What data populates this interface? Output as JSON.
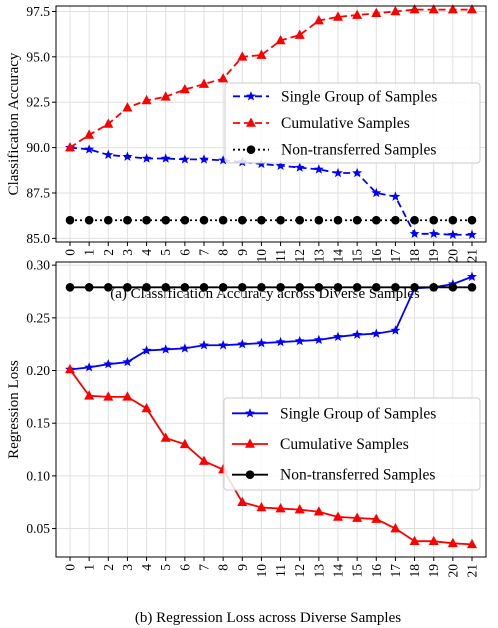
{
  "chart_data": [
    {
      "type": "line",
      "title": "",
      "caption": "(a) Classification Accuracy across Diverse Samples",
      "xlabel": "",
      "ylabel": "Classification Accuracy",
      "x": [
        0,
        1,
        2,
        3,
        4,
        5,
        6,
        7,
        8,
        9,
        10,
        11,
        12,
        13,
        14,
        15,
        16,
        17,
        18,
        19,
        20,
        21
      ],
      "xticks": [
        "0",
        "1",
        "2",
        "3",
        "4",
        "5",
        "6",
        "7",
        "8",
        "9",
        "10",
        "11",
        "12",
        "13",
        "14",
        "15",
        "16",
        "17",
        "18",
        "19",
        "20",
        "21"
      ],
      "ylim": [
        84.8,
        97.8
      ],
      "yticks": [
        "85.0",
        "87.5",
        "90.0",
        "92.5",
        "95.0",
        "97.5"
      ],
      "ytick_values": [
        85.0,
        87.5,
        90.0,
        92.5,
        95.0,
        97.5
      ],
      "grid": true,
      "legend_position": "center-right",
      "series": [
        {
          "name": "Single Group of Samples",
          "color": "#0000ff",
          "linestyle": "dashed",
          "marker": "star",
          "values": [
            90.0,
            89.9,
            89.6,
            89.5,
            89.4,
            89.4,
            89.35,
            89.35,
            89.3,
            89.2,
            89.1,
            89.0,
            88.9,
            88.8,
            88.6,
            88.6,
            87.5,
            87.3,
            85.25,
            85.25,
            85.2,
            85.2
          ]
        },
        {
          "name": "Cumulative Samples",
          "color": "#ff0000",
          "linestyle": "dashed",
          "marker": "triangle",
          "values": [
            90.0,
            90.7,
            91.3,
            92.2,
            92.6,
            92.8,
            93.2,
            93.5,
            93.8,
            95.0,
            95.1,
            95.9,
            96.2,
            97.0,
            97.2,
            97.3,
            97.4,
            97.5,
            97.6,
            97.6,
            97.6,
            97.6
          ]
        },
        {
          "name": "Non-transferred Samples",
          "color": "#000000",
          "linestyle": "dotted",
          "marker": "circle",
          "values": [
            86.0,
            86.0,
            86.0,
            86.0,
            86.0,
            86.0,
            86.0,
            86.0,
            86.0,
            86.0,
            86.0,
            86.0,
            86.0,
            86.0,
            86.0,
            86.0,
            86.0,
            86.0,
            86.0,
            86.0,
            86.0,
            86.0
          ]
        }
      ]
    },
    {
      "type": "line",
      "title": "",
      "caption": "(b) Regression Loss across Diverse Samples",
      "xlabel": "",
      "ylabel": "Regression Loss",
      "x": [
        0,
        1,
        2,
        3,
        4,
        5,
        6,
        7,
        8,
        9,
        10,
        11,
        12,
        13,
        14,
        15,
        16,
        17,
        18,
        19,
        20,
        21
      ],
      "xticks": [
        "0",
        "1",
        "2",
        "3",
        "4",
        "5",
        "6",
        "7",
        "8",
        "9",
        "10",
        "11",
        "12",
        "13",
        "14",
        "15",
        "16",
        "17",
        "18",
        "19",
        "20",
        "21"
      ],
      "ylim": [
        0.023,
        0.303
      ],
      "yticks": [
        "0.05",
        "0.10",
        "0.15",
        "0.20",
        "0.25",
        "0.30"
      ],
      "ytick_values": [
        0.05,
        0.1,
        0.15,
        0.2,
        0.25,
        0.3
      ],
      "grid": true,
      "legend_position": "center-right",
      "series": [
        {
          "name": "Single Group of Samples",
          "color": "#0000ff",
          "linestyle": "solid",
          "marker": "star",
          "values": [
            0.201,
            0.203,
            0.206,
            0.208,
            0.219,
            0.22,
            0.221,
            0.224,
            0.224,
            0.225,
            0.226,
            0.227,
            0.228,
            0.229,
            0.232,
            0.234,
            0.235,
            0.238,
            0.278,
            0.279,
            0.282,
            0.289
          ]
        },
        {
          "name": "Cumulative Samples",
          "color": "#ff0000",
          "linestyle": "solid",
          "marker": "triangle",
          "values": [
            0.201,
            0.176,
            0.175,
            0.175,
            0.164,
            0.136,
            0.13,
            0.114,
            0.106,
            0.075,
            0.07,
            0.069,
            0.068,
            0.066,
            0.061,
            0.06,
            0.059,
            0.05,
            0.038,
            0.038,
            0.036,
            0.035
          ]
        },
        {
          "name": "Non-transferred Samples",
          "color": "#000000",
          "linestyle": "solid",
          "marker": "circle",
          "values": [
            0.279,
            0.279,
            0.279,
            0.279,
            0.279,
            0.279,
            0.279,
            0.279,
            0.279,
            0.279,
            0.279,
            0.279,
            0.279,
            0.279,
            0.279,
            0.279,
            0.279,
            0.279,
            0.279,
            0.279,
            0.279,
            0.279
          ]
        }
      ]
    }
  ]
}
